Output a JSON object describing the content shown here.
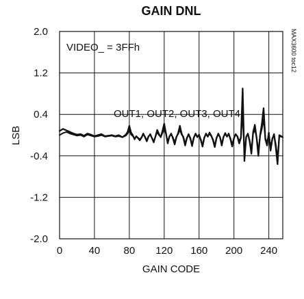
{
  "chart_data": {
    "type": "line",
    "title": "GAIN DNL",
    "xlabel": "GAIN CODE",
    "ylabel": "LSB",
    "xlim": [
      0,
      256
    ],
    "ylim": [
      -2.0,
      2.0
    ],
    "x_ticks": [
      0,
      40,
      80,
      120,
      160,
      200,
      240
    ],
    "y_ticks": [
      -2.0,
      -1.2,
      -0.4,
      0.4,
      1.2,
      2.0
    ],
    "x_tick_labels": [
      "0",
      "40",
      "80",
      "120",
      "160",
      "200",
      "240"
    ],
    "y_tick_labels": [
      "-2.0",
      "-1.2",
      "-0.4",
      "0.4",
      "1.2",
      "2.0"
    ],
    "grid": true,
    "annotations": {
      "condition": "VIDEO_ = 3FFh",
      "series_note": "OUT1, OUT2, OUT3, OUT4",
      "side_code": "MAX3600 toc12"
    },
    "series": [
      {
        "color": "#111111",
        "points": [
          [
            0,
            0.08
          ],
          [
            4,
            0.12
          ],
          [
            8,
            0.09
          ],
          [
            12,
            0.06
          ],
          [
            16,
            0.03
          ],
          [
            20,
            0.01
          ],
          [
            24,
            0.02
          ],
          [
            28,
            -0.01
          ],
          [
            32,
            0.03
          ],
          [
            36,
            0.01
          ],
          [
            40,
            -0.02
          ],
          [
            44,
            0.0
          ],
          [
            48,
            0.02
          ],
          [
            52,
            -0.02
          ],
          [
            56,
            -0.01
          ],
          [
            60,
            0.0
          ],
          [
            64,
            -0.02
          ],
          [
            68,
            0.0
          ],
          [
            72,
            -0.04
          ],
          [
            76,
            0.01
          ],
          [
            78,
            0.06
          ],
          [
            80,
            0.18
          ],
          [
            82,
            0.05
          ],
          [
            84,
            0.0
          ],
          [
            86,
            -0.08
          ],
          [
            88,
            -0.02
          ],
          [
            90,
            -0.06
          ],
          [
            92,
            -0.1
          ],
          [
            94,
            -0.05
          ],
          [
            96,
            0.03
          ],
          [
            98,
            -0.04
          ],
          [
            100,
            -0.12
          ],
          [
            102,
            -0.03
          ],
          [
            104,
            0.02
          ],
          [
            106,
            -0.06
          ],
          [
            108,
            -0.14
          ],
          [
            110,
            -0.02
          ],
          [
            112,
            0.1
          ],
          [
            114,
            0.02
          ],
          [
            116,
            -0.04
          ],
          [
            118,
            0.08
          ],
          [
            120,
            0.22
          ],
          [
            122,
            0.04
          ],
          [
            124,
            -0.16
          ],
          [
            126,
            -0.03
          ],
          [
            128,
            0.03
          ],
          [
            130,
            -0.06
          ],
          [
            132,
            -0.18
          ],
          [
            134,
            -0.04
          ],
          [
            136,
            0.04
          ],
          [
            138,
            0.18
          ],
          [
            140,
            0.03
          ],
          [
            142,
            -0.05
          ],
          [
            144,
            -0.2
          ],
          [
            146,
            -0.06
          ],
          [
            148,
            0.02
          ],
          [
            150,
            -0.07
          ],
          [
            152,
            -0.21
          ],
          [
            154,
            -0.05
          ],
          [
            156,
            0.03
          ],
          [
            158,
            -0.04
          ],
          [
            160,
            0.01
          ],
          [
            162,
            -0.1
          ],
          [
            164,
            -0.22
          ],
          [
            166,
            -0.05
          ],
          [
            168,
            0.03
          ],
          [
            170,
            -0.03
          ],
          [
            172,
            0.05
          ],
          [
            174,
            -0.01
          ],
          [
            176,
            -0.1
          ],
          [
            178,
            -0.23
          ],
          [
            180,
            -0.06
          ],
          [
            182,
            0.03
          ],
          [
            184,
            -0.04
          ],
          [
            186,
            -0.2
          ],
          [
            188,
            -0.04
          ],
          [
            190,
            0.04
          ],
          [
            192,
            -0.03
          ],
          [
            194,
            0.03
          ],
          [
            196,
            -0.08
          ],
          [
            198,
            -0.22
          ],
          [
            200,
            -0.06
          ],
          [
            202,
            0.02
          ],
          [
            204,
            -0.03
          ],
          [
            206,
            -0.16
          ],
          [
            208,
            -0.05
          ],
          [
            210,
            0.9
          ],
          [
            212,
            -0.5
          ],
          [
            214,
            -0.04
          ],
          [
            216,
            0.03
          ],
          [
            218,
            -0.12
          ],
          [
            220,
            -0.36
          ],
          [
            222,
            0.06
          ],
          [
            224,
            0.2
          ],
          [
            226,
            -0.06
          ],
          [
            228,
            -0.4
          ],
          [
            230,
            0.0
          ],
          [
            232,
            0.22
          ],
          [
            234,
            0.52
          ],
          [
            236,
            -0.08
          ],
          [
            238,
            -0.2
          ],
          [
            240,
            0.05
          ],
          [
            242,
            -0.3
          ],
          [
            244,
            -0.08
          ],
          [
            246,
            0.02
          ],
          [
            248,
            -0.24
          ],
          [
            250,
            -0.56
          ],
          [
            252,
            0.0
          ],
          [
            254,
            -0.02
          ],
          [
            256,
            -0.04
          ]
        ]
      },
      {
        "color": "#111111",
        "points": [
          [
            0,
            0.0
          ],
          [
            4,
            0.04
          ],
          [
            8,
            0.06
          ],
          [
            12,
            0.03
          ],
          [
            16,
            0.01
          ],
          [
            20,
            -0.01
          ],
          [
            24,
            0.0
          ],
          [
            28,
            -0.03
          ],
          [
            32,
            0.01
          ],
          [
            36,
            -0.01
          ],
          [
            40,
            -0.03
          ],
          [
            44,
            -0.02
          ],
          [
            48,
            0.0
          ],
          [
            52,
            -0.03
          ],
          [
            56,
            -0.02
          ],
          [
            60,
            -0.01
          ],
          [
            64,
            -0.03
          ],
          [
            68,
            -0.02
          ],
          [
            72,
            -0.04
          ],
          [
            76,
            -0.01
          ],
          [
            78,
            0.03
          ],
          [
            80,
            0.1
          ],
          [
            82,
            0.01
          ],
          [
            84,
            -0.02
          ],
          [
            86,
            -0.06
          ],
          [
            88,
            -0.03
          ],
          [
            90,
            -0.05
          ],
          [
            92,
            -0.08
          ],
          [
            94,
            -0.04
          ],
          [
            96,
            0.01
          ],
          [
            98,
            -0.03
          ],
          [
            100,
            -0.1
          ],
          [
            102,
            -0.02
          ],
          [
            104,
            0.0
          ],
          [
            106,
            -0.05
          ],
          [
            108,
            -0.12
          ],
          [
            110,
            -0.03
          ],
          [
            112,
            0.06
          ],
          [
            114,
            0.0
          ],
          [
            116,
            -0.03
          ],
          [
            118,
            0.04
          ],
          [
            120,
            0.12
          ],
          [
            122,
            0.02
          ],
          [
            124,
            -0.12
          ],
          [
            126,
            -0.02
          ],
          [
            128,
            0.01
          ],
          [
            130,
            -0.04
          ],
          [
            132,
            -0.14
          ],
          [
            134,
            -0.03
          ],
          [
            136,
            0.02
          ],
          [
            138,
            0.1
          ],
          [
            140,
            0.01
          ],
          [
            142,
            -0.03
          ],
          [
            144,
            -0.16
          ],
          [
            146,
            -0.05
          ],
          [
            148,
            0.01
          ],
          [
            150,
            -0.05
          ],
          [
            152,
            -0.18
          ],
          [
            154,
            -0.04
          ],
          [
            156,
            0.01
          ],
          [
            158,
            -0.03
          ],
          [
            160,
            0.0
          ],
          [
            162,
            -0.08
          ],
          [
            164,
            -0.19
          ],
          [
            166,
            -0.04
          ],
          [
            168,
            0.01
          ],
          [
            170,
            -0.02
          ],
          [
            172,
            0.02
          ],
          [
            174,
            -0.02
          ],
          [
            176,
            -0.08
          ],
          [
            178,
            -0.2
          ],
          [
            180,
            -0.05
          ],
          [
            182,
            0.01
          ],
          [
            184,
            -0.03
          ],
          [
            186,
            -0.17
          ],
          [
            188,
            -0.03
          ],
          [
            190,
            0.02
          ],
          [
            192,
            -0.02
          ],
          [
            194,
            0.01
          ],
          [
            196,
            -0.06
          ],
          [
            198,
            -0.18
          ],
          [
            200,
            -0.05
          ],
          [
            202,
            0.01
          ],
          [
            204,
            -0.02
          ],
          [
            206,
            -0.12
          ],
          [
            208,
            -0.04
          ],
          [
            210,
            0.42
          ],
          [
            212,
            -0.4
          ],
          [
            214,
            -0.03
          ],
          [
            216,
            0.02
          ],
          [
            218,
            -0.1
          ],
          [
            220,
            -0.28
          ],
          [
            222,
            0.03
          ],
          [
            224,
            0.1
          ],
          [
            226,
            -0.04
          ],
          [
            228,
            -0.3
          ],
          [
            230,
            -0.02
          ],
          [
            232,
            0.12
          ],
          [
            234,
            0.3
          ],
          [
            236,
            -0.06
          ],
          [
            238,
            -0.14
          ],
          [
            240,
            0.02
          ],
          [
            242,
            -0.24
          ],
          [
            244,
            -0.06
          ],
          [
            246,
            0.01
          ],
          [
            248,
            -0.18
          ],
          [
            250,
            -0.44
          ],
          [
            252,
            -0.02
          ],
          [
            254,
            -0.03
          ],
          [
            256,
            -0.04
          ]
        ]
      }
    ]
  }
}
